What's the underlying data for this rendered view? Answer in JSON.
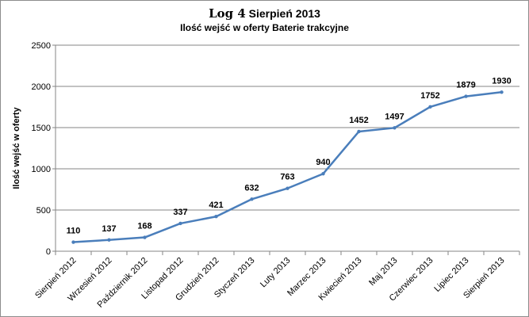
{
  "chart_data": {
    "type": "line",
    "title_main": "Log 4",
    "title_rest": "Sierpień 2013",
    "subtitle": "Ilość wejść w oferty Baterie trakcyjne",
    "xlabel": "",
    "ylabel": "Ilość wejść w oferty",
    "ylim": [
      0,
      2500
    ],
    "yticks": [
      0,
      500,
      1000,
      1500,
      2000,
      2500
    ],
    "categories": [
      "Sierpień 2012",
      "Wrzesień 2012",
      "Październik 2012",
      "Listopad 2012",
      "Grudzień 2012",
      "Styczeń 2013",
      "Luty 2013",
      "Marzec 2013",
      "Kwiecień 2013",
      "Maj 2013",
      "Czerwiec 2013",
      "Lipiec 2013",
      "Sierpień 2013"
    ],
    "series": [
      {
        "values": [
          110,
          137,
          168,
          337,
          421,
          632,
          763,
          940,
          1452,
          1497,
          1752,
          1879,
          1930
        ]
      }
    ],
    "grid": true,
    "legend": "none",
    "line_color": "#4a7ebb",
    "grid_color": "#868686"
  }
}
